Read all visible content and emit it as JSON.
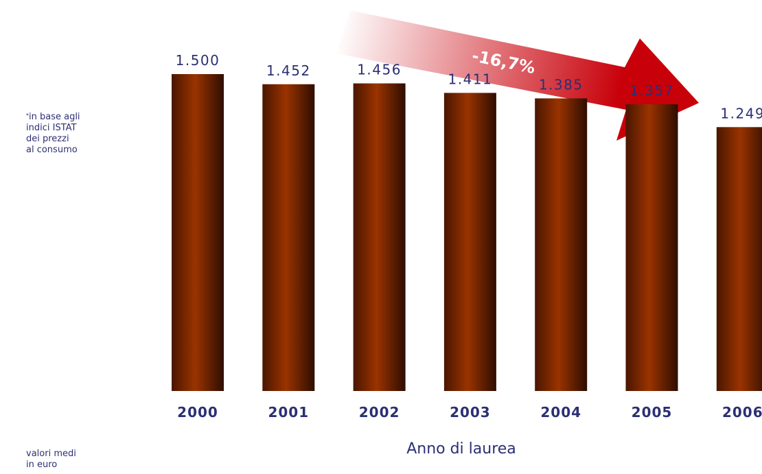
{
  "chart_data": {
    "type": "bar",
    "categories": [
      "2000",
      "2001",
      "2002",
      "2003",
      "2004",
      "2005",
      "2006"
    ],
    "values": [
      1500,
      1452,
      1456,
      1411,
      1385,
      1357,
      1249
    ],
    "value_labels": [
      "1.500",
      "1.452",
      "1.456",
      "1.411",
      "1.385",
      "1.357",
      "1.249"
    ],
    "xlabel": "Anno di laurea",
    "ylabel": "",
    "ylim": [
      0,
      1500
    ],
    "grid": false,
    "bar_color": "#8b2a00",
    "text_color": "#2b2f73",
    "annotation": {
      "text": "-16,7%",
      "color": "#c8000a"
    }
  },
  "notes": {
    "footnote_mark": "*",
    "footnote": "in base agli\nindici ISTAT\ndei prezzi\nal consumo",
    "units": "valori medi\nin euro"
  }
}
